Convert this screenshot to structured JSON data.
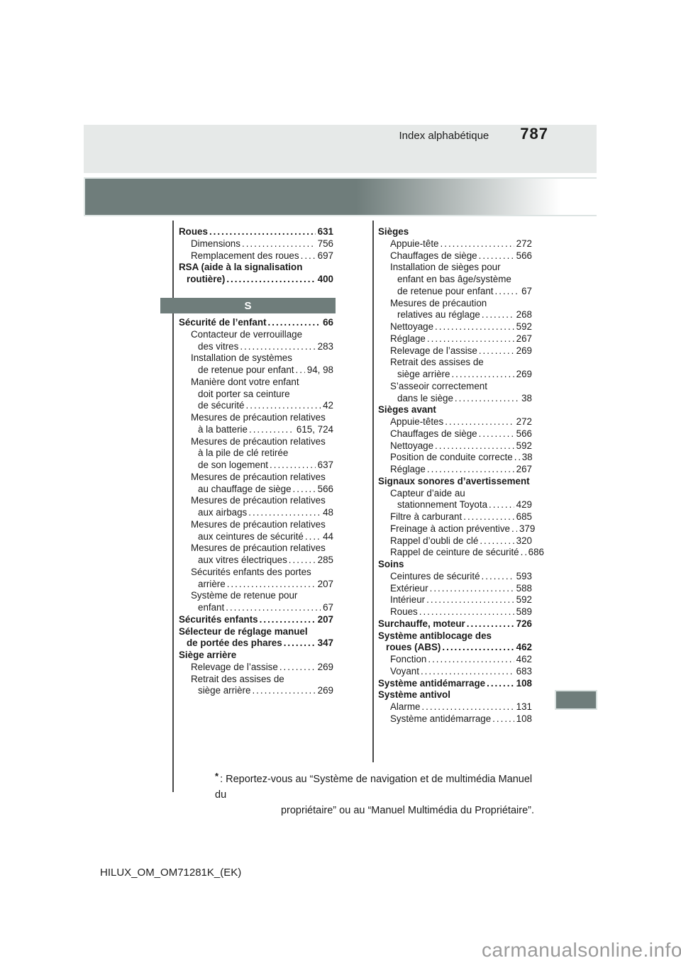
{
  "header": {
    "section_title": "Index alphabétique",
    "page_number": "787"
  },
  "section_letter": "S",
  "left_column": {
    "rows_top": [
      {
        "t": "Roues",
        "i": 0,
        "b": true,
        "n": "631"
      },
      {
        "t": "Dimensions",
        "i": 2,
        "n": "756"
      },
      {
        "t": "Remplacement des roues",
        "i": 2,
        "n": "697"
      },
      {
        "t": "RSA (aide à la signalisation",
        "i": 0,
        "b": true
      },
      {
        "t": "routière)",
        "i": 1,
        "b": true,
        "n": "400"
      }
    ],
    "rows_bottom": [
      {
        "t": "Sécurité de l’enfant",
        "i": 0,
        "b": true,
        "n": "66"
      },
      {
        "t": "Contacteur de verrouillage",
        "i": 2
      },
      {
        "t": "des vitres",
        "i": 3,
        "n": "283"
      },
      {
        "t": "Installation de systèmes",
        "i": 2
      },
      {
        "t": "de retenue pour enfant",
        "i": 3,
        "n": "94, 98"
      },
      {
        "t": "Manière dont votre enfant",
        "i": 2
      },
      {
        "t": "doit porter sa ceinture",
        "i": 3
      },
      {
        "t": "de sécurité",
        "i": 3,
        "n": "42"
      },
      {
        "t": "Mesures de précaution relatives",
        "i": 2
      },
      {
        "t": "à la batterie",
        "i": 3,
        "n": "615, 724"
      },
      {
        "t": "Mesures de précaution relatives",
        "i": 2
      },
      {
        "t": "à la pile de clé retirée",
        "i": 3
      },
      {
        "t": "de son logement",
        "i": 3,
        "n": "637"
      },
      {
        "t": "Mesures de précaution relatives",
        "i": 2
      },
      {
        "t": "au chauffage de siège",
        "i": 3,
        "n": "566"
      },
      {
        "t": "Mesures de précaution relatives",
        "i": 2
      },
      {
        "t": "aux airbags",
        "i": 3,
        "n": "48"
      },
      {
        "t": "Mesures de précaution relatives",
        "i": 2
      },
      {
        "t": "aux ceintures de sécurité",
        "i": 3,
        "n": "44"
      },
      {
        "t": "Mesures de précaution relatives",
        "i": 2
      },
      {
        "t": "aux vitres électriques",
        "i": 3,
        "n": "285"
      },
      {
        "t": "Sécurités enfants des portes",
        "i": 2
      },
      {
        "t": "arrière",
        "i": 3,
        "n": "207"
      },
      {
        "t": "Système de retenue pour",
        "i": 2
      },
      {
        "t": "enfant",
        "i": 3,
        "n": "67"
      },
      {
        "t": "Sécurités enfants",
        "i": 0,
        "b": true,
        "n": "207"
      },
      {
        "t": "Sélecteur de réglage manuel",
        "i": 0,
        "b": true
      },
      {
        "t": "de portée des phares",
        "i": 1,
        "b": true,
        "n": "347"
      },
      {
        "t": "Siège arrière",
        "i": 0,
        "b": true
      },
      {
        "t": "Relevage de l’assise",
        "i": 2,
        "n": "269"
      },
      {
        "t": "Retrait des assises de",
        "i": 2
      },
      {
        "t": "siège arrière",
        "i": 3,
        "n": "269"
      }
    ]
  },
  "right_column": {
    "rows": [
      {
        "t": "Sièges",
        "i": 0,
        "b": true
      },
      {
        "t": "Appuie-tête",
        "i": 2,
        "n": "272"
      },
      {
        "t": "Chauffages de siège",
        "i": 2,
        "n": "566"
      },
      {
        "t": "Installation de sièges pour",
        "i": 2
      },
      {
        "t": "enfant en bas âge/système",
        "i": 3
      },
      {
        "t": "de retenue pour enfant",
        "i": 3,
        "n": "67"
      },
      {
        "t": "Mesures de précaution",
        "i": 2
      },
      {
        "t": "relatives au réglage",
        "i": 3,
        "n": "268"
      },
      {
        "t": "Nettoyage",
        "i": 2,
        "n": "592"
      },
      {
        "t": "Réglage",
        "i": 2,
        "n": "267"
      },
      {
        "t": "Relevage de l’assise",
        "i": 2,
        "n": "269"
      },
      {
        "t": "Retrait des assises de",
        "i": 2
      },
      {
        "t": "siège arrière",
        "i": 3,
        "n": "269"
      },
      {
        "t": "S’asseoir correctement",
        "i": 2
      },
      {
        "t": "dans le siège",
        "i": 3,
        "n": "38"
      },
      {
        "t": "Sièges avant",
        "i": 0,
        "b": true
      },
      {
        "t": "Appuie-têtes",
        "i": 2,
        "n": "272"
      },
      {
        "t": "Chauffages de siège",
        "i": 2,
        "n": "566"
      },
      {
        "t": "Nettoyage",
        "i": 2,
        "n": "592"
      },
      {
        "t": "Position de conduite correcte",
        "i": 2,
        "n": "38"
      },
      {
        "t": "Réglage",
        "i": 2,
        "n": "267"
      },
      {
        "t": "Signaux sonores d’avertissement",
        "i": 0,
        "b": true
      },
      {
        "t": "Capteur d’aide au",
        "i": 2
      },
      {
        "t": "stationnement Toyota",
        "i": 3,
        "n": "429"
      },
      {
        "t": "Filtre à carburant",
        "i": 2,
        "n": "685"
      },
      {
        "t": "Freinage à action préventive",
        "i": 2,
        "n": "379"
      },
      {
        "t": "Rappel d’oubli de clé",
        "i": 2,
        "n": "320"
      },
      {
        "t": "Rappel de ceinture de sécurité",
        "i": 2,
        "n": "686"
      },
      {
        "t": "Soins",
        "i": 0,
        "b": true
      },
      {
        "t": "Ceintures de sécurité",
        "i": 2,
        "n": "593"
      },
      {
        "t": "Extérieur",
        "i": 2,
        "n": "588"
      },
      {
        "t": "Intérieur",
        "i": 2,
        "n": "592"
      },
      {
        "t": "Roues",
        "i": 2,
        "n": "589"
      },
      {
        "t": "Surchauffe, moteur",
        "i": 0,
        "b": true,
        "n": "726"
      },
      {
        "t": "Système antiblocage des",
        "i": 0,
        "b": true
      },
      {
        "t": "roues (ABS)",
        "i": 1,
        "b": true,
        "n": "462"
      },
      {
        "t": "Fonction",
        "i": 2,
        "n": "462"
      },
      {
        "t": "Voyant",
        "i": 2,
        "n": "683"
      },
      {
        "t": "Système antidémarrage",
        "i": 0,
        "b": true,
        "n": "108"
      },
      {
        "t": "Système antivol",
        "i": 0,
        "b": true
      },
      {
        "t": "Alarme",
        "i": 2,
        "n": "131"
      },
      {
        "t": "Système antidémarrage",
        "i": 2,
        "n": "108"
      }
    ]
  },
  "footnote": {
    "symbol": "*",
    "line1": ": Reportez-vous au “Système de navigation et de multimédia Manuel du",
    "line2": "propriétaire” ou au “Manuel Multimédia du Propriétaire”."
  },
  "footer_code": "HILUX_OM_OM71281K_(EK)",
  "watermark": "carmanualsonline.info",
  "colors": {
    "header_band": "#e6e9e8",
    "accent_bar": "#6f7d7b",
    "bar_border": "#dde4e3",
    "text": "#1a1a1a",
    "watermark": "#9b9b9b"
  }
}
